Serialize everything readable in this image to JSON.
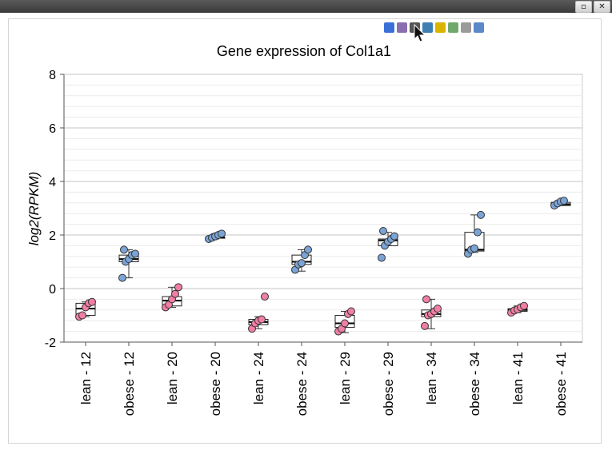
{
  "window": {
    "restore_icon": "restore-icon",
    "close_icon": "close-icon"
  },
  "toolbar": {
    "icons": [
      "help-icon",
      "info-icon",
      "camera-icon",
      "save-icon",
      "filter-icon",
      "table-icon",
      "settings-icon",
      "layout-icon"
    ],
    "colors": [
      "#3a6fd8",
      "#8a6fb0",
      "#555555",
      "#3d7fb5",
      "#d9b400",
      "#6fa86b",
      "#9a9a9a",
      "#5a88c8"
    ]
  },
  "chart_data": {
    "type": "box-strip",
    "title": "Gene expression of Col1a1",
    "xlabel": "",
    "ylabel": "log2(RPKM)",
    "ylim": [
      -2,
      8
    ],
    "yticks": [
      -2,
      0,
      2,
      4,
      6,
      8
    ],
    "grid": true,
    "colors": {
      "lean": "#f07fa3",
      "obese": "#7ba4d6"
    },
    "categories": [
      "lean - 12",
      "obese - 12",
      "lean - 20",
      "obese - 20",
      "lean - 24",
      "obese - 24",
      "lean - 29",
      "obese - 29",
      "lean - 34",
      "obese - 34",
      "lean - 41",
      "obese - 41"
    ],
    "groups": [
      {
        "label": "lean - 12",
        "type": "lean",
        "box": [
          -1.05,
          -1.0,
          -0.75,
          -0.55,
          -0.5
        ],
        "points": [
          -1.05,
          -1.0,
          -0.7,
          -0.55,
          -0.5
        ]
      },
      {
        "label": "obese - 12",
        "type": "obese",
        "box": [
          0.4,
          1.0,
          1.1,
          1.25,
          1.45
        ],
        "points": [
          0.4,
          1.0,
          1.1,
          1.25,
          1.3,
          1.45
        ]
      },
      {
        "label": "lean - 20",
        "type": "lean",
        "box": [
          -0.7,
          -0.65,
          -0.45,
          -0.3,
          0.05
        ],
        "points": [
          -0.7,
          -0.6,
          -0.4,
          -0.2,
          0.05
        ]
      },
      {
        "label": "obese - 20",
        "type": "obese",
        "box": [
          1.85,
          1.88,
          1.9,
          1.92,
          2.05
        ],
        "points": [
          1.85,
          1.9,
          1.95,
          2.0,
          2.05
        ]
      },
      {
        "label": "lean - 24",
        "type": "lean",
        "box": [
          -1.5,
          -1.35,
          -1.25,
          -1.15,
          -1.05
        ],
        "points": [
          -1.5,
          -1.3,
          -1.2,
          -1.15,
          -0.3
        ]
      },
      {
        "label": "obese - 24",
        "type": "obese",
        "box": [
          0.65,
          0.9,
          1.0,
          1.25,
          1.45
        ],
        "points": [
          0.7,
          0.9,
          0.95,
          1.25,
          1.45
        ]
      },
      {
        "label": "lean - 29",
        "type": "lean",
        "box": [
          -1.65,
          -1.45,
          -1.3,
          -1.0,
          -0.85
        ],
        "points": [
          -1.6,
          -1.5,
          -1.3,
          -0.95,
          -0.85
        ]
      },
      {
        "label": "obese - 29",
        "type": "obese",
        "box": [
          1.6,
          1.6,
          1.8,
          1.85,
          2.1
        ],
        "points": [
          1.15,
          1.6,
          1.75,
          1.85,
          1.95,
          2.15
        ]
      },
      {
        "label": "lean - 34",
        "type": "lean",
        "box": [
          -1.5,
          -1.05,
          -0.95,
          -0.8,
          -0.4
        ],
        "points": [
          -1.4,
          -1.0,
          -0.95,
          -0.85,
          -0.75,
          -0.4
        ]
      },
      {
        "label": "obese - 34",
        "type": "obese",
        "box": [
          1.35,
          1.4,
          1.45,
          2.1,
          2.75
        ],
        "points": [
          1.3,
          1.45,
          1.5,
          2.1,
          2.75
        ]
      },
      {
        "label": "lean - 41",
        "type": "lean",
        "box": [
          -0.9,
          -0.85,
          -0.8,
          -0.75,
          -0.65
        ],
        "points": [
          -0.9,
          -0.82,
          -0.78,
          -0.7,
          -0.65
        ]
      },
      {
        "label": "obese - 41",
        "type": "obese",
        "box": [
          3.1,
          3.1,
          3.15,
          3.22,
          3.28
        ],
        "points": [
          3.1,
          3.18,
          3.25,
          3.28
        ]
      }
    ]
  }
}
